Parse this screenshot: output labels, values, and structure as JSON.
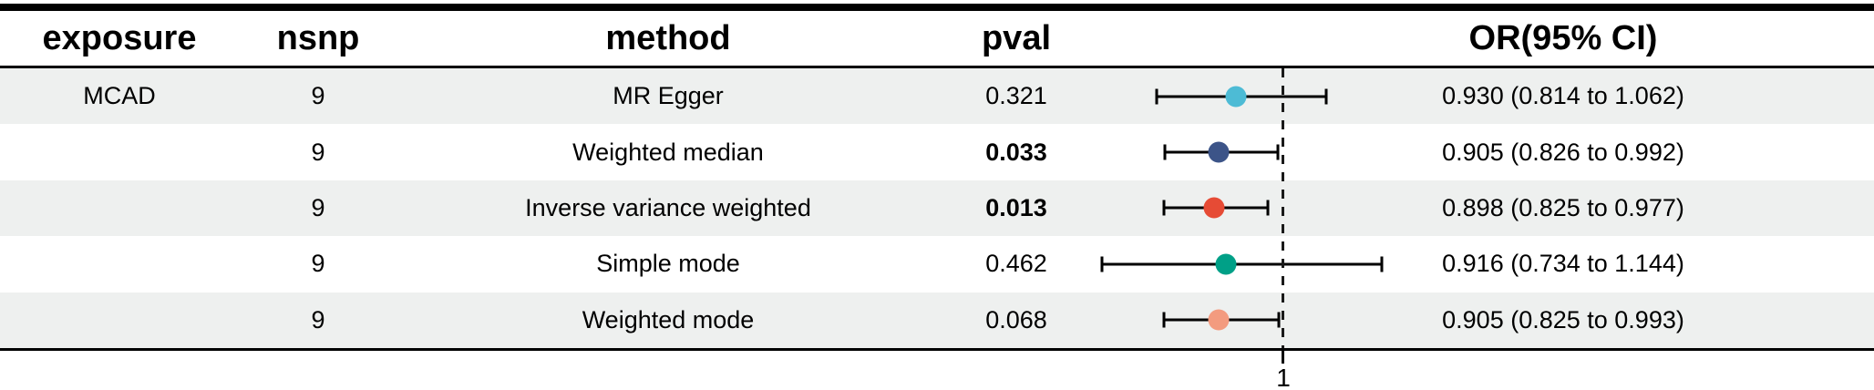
{
  "header": {
    "exposure": "exposure",
    "nsnp": "nsnp",
    "method": "method",
    "pval": "pval",
    "or_ci": "OR(95% CI)"
  },
  "axis": {
    "tick_label": "1"
  },
  "colors": {
    "row_stripe": "#eef0ef",
    "ci_line": "#000000",
    "refline": "#1a1a1a"
  },
  "chart_data": {
    "type": "forest",
    "exposure": "MCAD",
    "columns": [
      "exposure",
      "nsnp",
      "method",
      "pval",
      "OR(95% CI)"
    ],
    "refline": 1,
    "x_tick_labels": [
      "1"
    ],
    "x_range_approx": [
      0.72,
      1.22
    ],
    "rows": [
      {
        "exposure": "MCAD",
        "nsnp": "9",
        "method": "MR Egger",
        "pval": "0.321",
        "significant": false,
        "or": 0.93,
        "ci_low": 0.814,
        "ci_high": 1.062,
        "or_text": "0.930 (0.814 to 1.062)",
        "color": "#4DBBD5"
      },
      {
        "exposure": "",
        "nsnp": "9",
        "method": "Weighted median",
        "pval": "0.033",
        "significant": true,
        "or": 0.905,
        "ci_low": 0.826,
        "ci_high": 0.992,
        "or_text": "0.905 (0.826 to 0.992)",
        "color": "#3C5488"
      },
      {
        "exposure": "",
        "nsnp": "9",
        "method": "Inverse variance weighted",
        "pval": "0.013",
        "significant": true,
        "or": 0.898,
        "ci_low": 0.825,
        "ci_high": 0.977,
        "or_text": "0.898 (0.825 to 0.977)",
        "color": "#E64B35"
      },
      {
        "exposure": "",
        "nsnp": "9",
        "method": "Simple mode",
        "pval": "0.462",
        "significant": false,
        "or": 0.916,
        "ci_low": 0.734,
        "ci_high": 1.144,
        "or_text": "0.916 (0.734 to 1.144)",
        "color": "#00A087"
      },
      {
        "exposure": "",
        "nsnp": "9",
        "method": "Weighted mode",
        "pval": "0.068",
        "significant": false,
        "or": 0.905,
        "ci_low": 0.825,
        "ci_high": 0.993,
        "or_text": "0.905 (0.825 to 0.993)",
        "color": "#F39B7F"
      }
    ]
  }
}
